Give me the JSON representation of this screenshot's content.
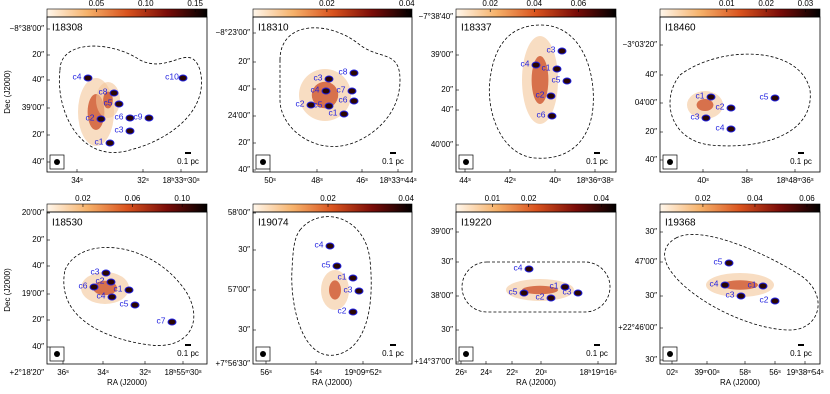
{
  "axis_labels": {
    "dec": "Dec (J2000)",
    "ra": "RA (J2000)"
  },
  "scale_bar": "0.1 pc",
  "panels": [
    {
      "name": "I18308",
      "cbar": {
        "lim": [
          0,
          0.162
        ],
        "ticks": [
          0.05,
          0.1,
          0.15
        ]
      },
      "yticks": [
        "−8°38′00″",
        "20″",
        "40″",
        "39′00″",
        "20″",
        "40″"
      ],
      "xticks": [
        "34ˢ",
        "32ˢ",
        "18ʰ33ᵐ30ˢ"
      ],
      "cores": [
        "c1",
        "c2",
        "c3",
        "c4",
        "c5",
        "c6",
        "c8",
        "c9",
        "c10"
      ]
    },
    {
      "name": "I18310",
      "cbar": {
        "lim": [
          0.0015,
          0.0413
        ],
        "ticks": [
          0.02,
          0.04
        ]
      },
      "yticks": [
        "−8°23′00″",
        "20″",
        "40″",
        "24′00″",
        "20″",
        "40″"
      ],
      "xticks": [
        "50ˢ",
        "48ˢ",
        "46ˢ",
        "18ʰ33ᵐ44ˢ"
      ],
      "cores": [
        "c1",
        "c2",
        "c3",
        "c4",
        "c5",
        "c6",
        "c7",
        "c8"
      ]
    },
    {
      "name": "I18337",
      "cbar": {
        "lim": [
          0.0045,
          0.077
        ],
        "ticks": [
          0.02,
          0.04,
          0.06
        ]
      },
      "yticks": [
        "−7°38′40″",
        "39′00″",
        "20″",
        "40″",
        "40′00″"
      ],
      "xticks": [
        "44ˢ",
        "42ˢ",
        "40ˢ",
        "18ʰ36ᵐ38ˢ"
      ],
      "cores": [
        "c1",
        "c2",
        "c3",
        "c4",
        "c5",
        "c6"
      ]
    },
    {
      "name": "I18460",
      "cbar": {
        "lim": [
          -0.007,
          0.0337
        ],
        "ticks": [
          0.01,
          0.02,
          0.03
        ]
      },
      "yticks": [
        "−3°03′20″",
        "40″",
        "04′00″",
        "20″",
        "40″"
      ],
      "xticks": [
        "40ˢ",
        "38ˢ",
        "18ʰ48ᵐ36ˢ"
      ],
      "cores": [
        "c1",
        "c2",
        "c3",
        "c4",
        "c5"
      ]
    },
    {
      "name": "I18530",
      "cbar": {
        "lim": [
          -0.009,
          0.12
        ],
        "ticks": [
          0.02,
          0.06,
          0.1
        ]
      },
      "yticks": [
        "20′00″",
        "20″",
        "40″",
        "19′00″",
        "20″",
        "40″",
        "+2°18′20″"
      ],
      "xticks": [
        "36ˢ",
        "34ˢ",
        "32ˢ",
        "18ʰ55ᵐ30ˢ"
      ],
      "cores": [
        "c1",
        "c2",
        "c3",
        "c4",
        "c5",
        "c6",
        "c7"
      ]
    },
    {
      "name": "I19074",
      "cbar": {
        "lim": [
          0.0008,
          0.0415
        ],
        "ticks": [
          0.02,
          0.04
        ]
      },
      "yticks": [
        "58′00″",
        "30″",
        "57′00″",
        "30″",
        "+7°56′30″"
      ],
      "xticks": [
        "56ˢ",
        "54ˢ",
        "19ʰ09ᵐ52ˢ"
      ],
      "cores": [
        "c1",
        "c2",
        "c3",
        "c4",
        "c5"
      ]
    },
    {
      "name": "I19220",
      "cbar": {
        "lim": [
          0,
          0.044
        ],
        "ticks": [
          0.01,
          0.02,
          0.04
        ]
      },
      "yticks": [
        "39′00″",
        "30″",
        "38′00″",
        "30″",
        "+14°37′00″"
      ],
      "xticks": [
        "26ˢ",
        "24ˢ",
        "22ˢ",
        "20ˢ",
        "18ʰ19ᵐ16ˢ"
      ],
      "cores": [
        "c1",
        "c2",
        "c3",
        "c4",
        "c5"
      ]
    },
    {
      "name": "I19368",
      "cbar": {
        "lim": [
          0.0035,
          0.065
        ],
        "ticks": [
          0.02,
          0.04,
          0.06
        ]
      },
      "yticks": [
        "30″",
        "47′00″",
        "30″",
        "+22°46′00″",
        "30″"
      ],
      "xticks": [
        "02ˢ",
        "39ᵐ00ˢ",
        "58ˢ",
        "56ˢ",
        "19ʰ38ᵐ54ˢ"
      ],
      "cores": [
        "c1",
        "c2",
        "c3",
        "c4",
        "c5"
      ]
    }
  ]
}
